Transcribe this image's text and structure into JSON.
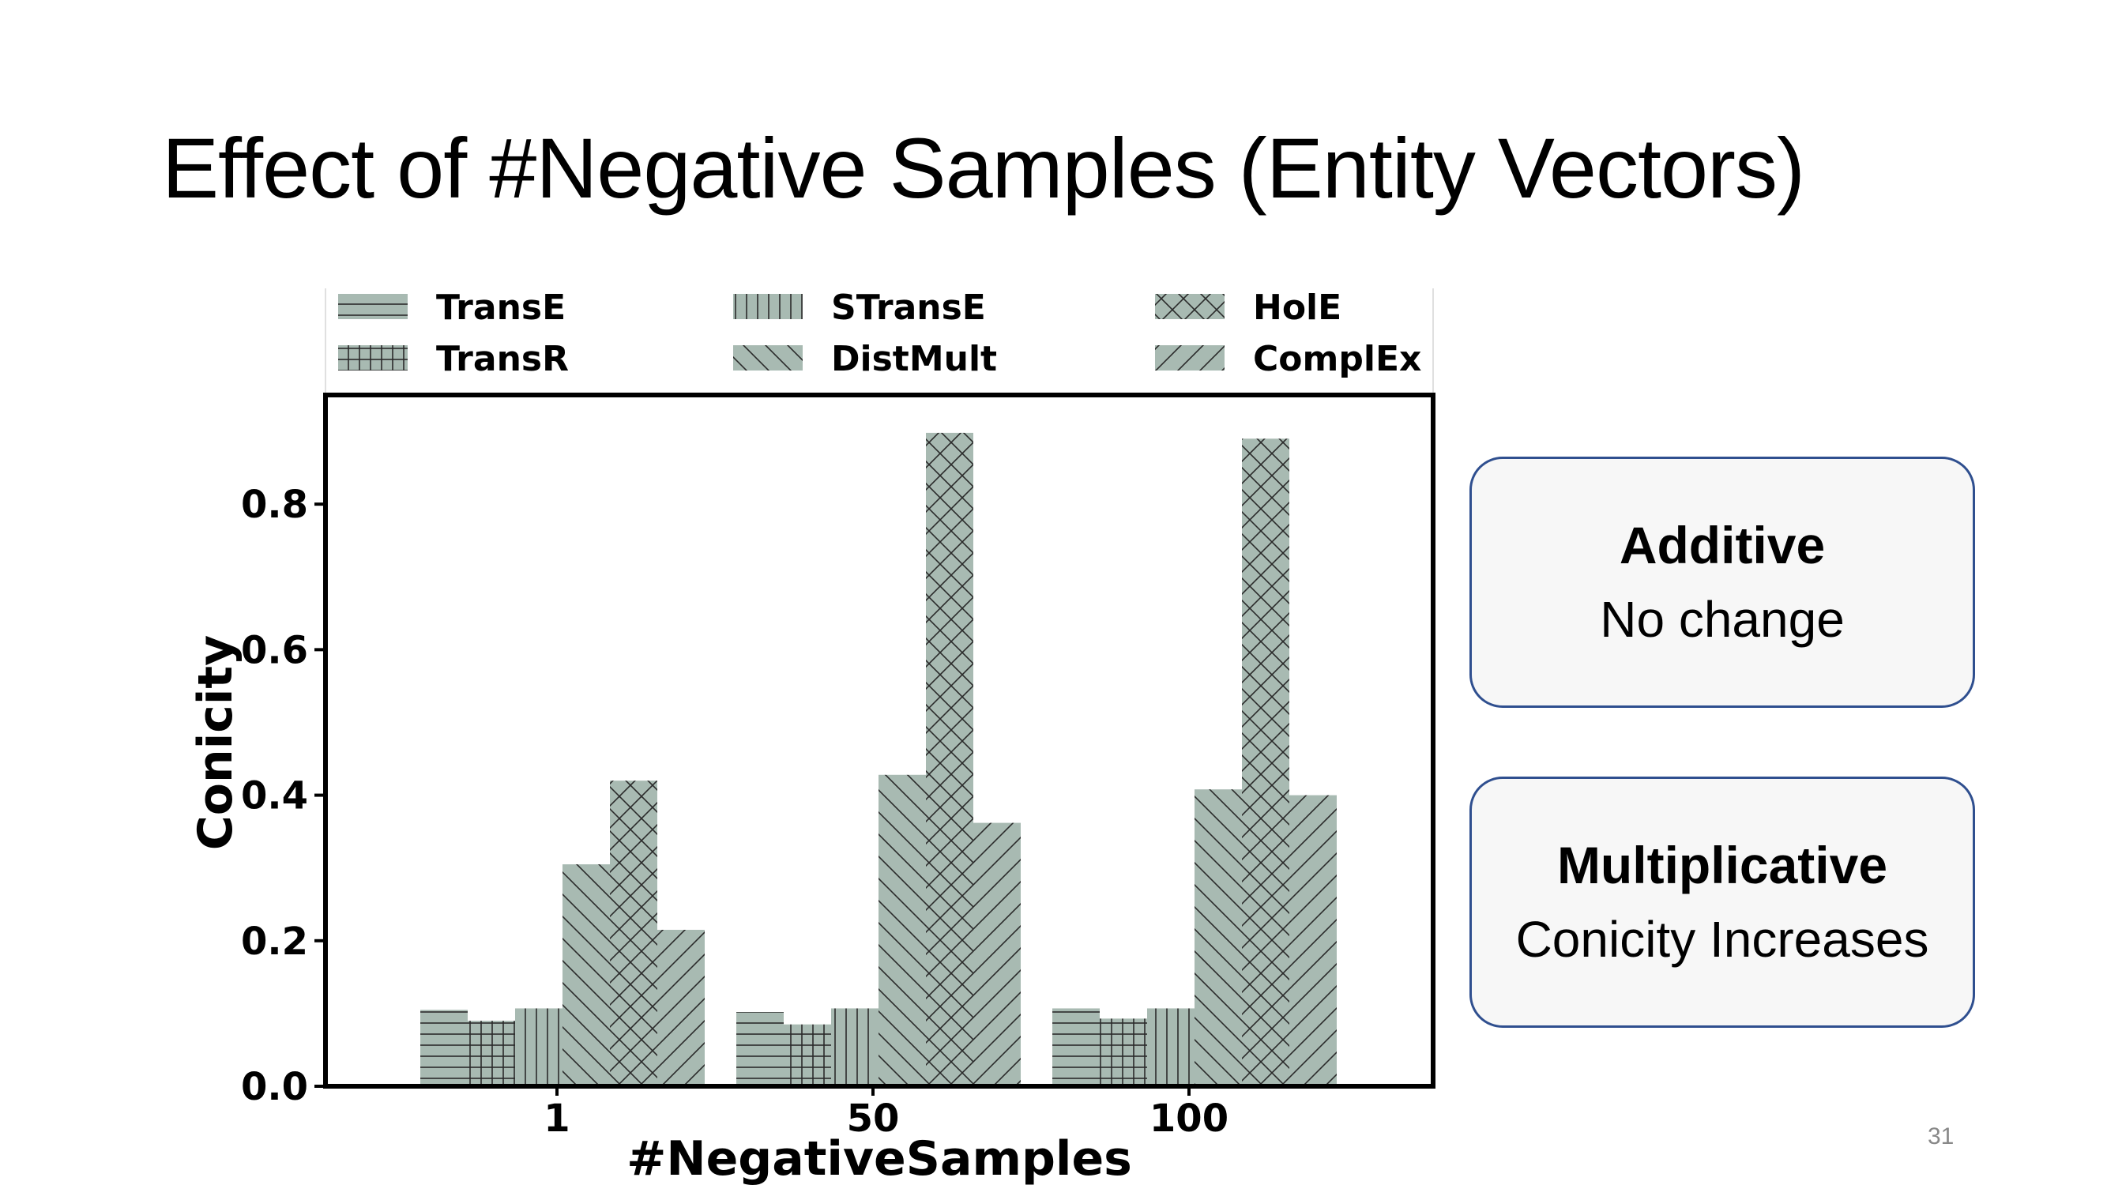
{
  "slide": {
    "title": "Effect of #Negative Samples (Entity Vectors)",
    "page_number": "31"
  },
  "boxes": [
    {
      "head": "Additive",
      "body": "No change"
    },
    {
      "head": "Multiplicative",
      "body": "Conicity Increases"
    }
  ],
  "chart_data": {
    "type": "bar",
    "title": "",
    "xlabel": "#NegativeSamples",
    "ylabel": "Conicity",
    "ylim": [
      0,
      0.95
    ],
    "yticks": [
      "0.0",
      "0.2",
      "0.4",
      "0.6",
      "0.8"
    ],
    "categories": [
      "1",
      "50",
      "100"
    ],
    "grid": false,
    "legend_position": "top",
    "bar_color": "#a8bab2",
    "series": [
      {
        "name": "TransE",
        "hatch": "horizontal",
        "values": [
          0.105,
          0.102,
          0.107
        ]
      },
      {
        "name": "TransR",
        "hatch": "grid",
        "values": [
          0.09,
          0.085,
          0.093
        ]
      },
      {
        "name": "STransE",
        "hatch": "vertical",
        "values": [
          0.107,
          0.107,
          0.107
        ]
      },
      {
        "name": "DistMult",
        "hatch": "backslash",
        "values": [
          0.305,
          0.428,
          0.408
        ]
      },
      {
        "name": "HolE",
        "hatch": "crosshatch",
        "values": [
          0.42,
          0.898,
          0.89
        ]
      },
      {
        "name": "ComplEx",
        "hatch": "slash",
        "values": [
          0.215,
          0.362,
          0.4
        ]
      }
    ]
  }
}
